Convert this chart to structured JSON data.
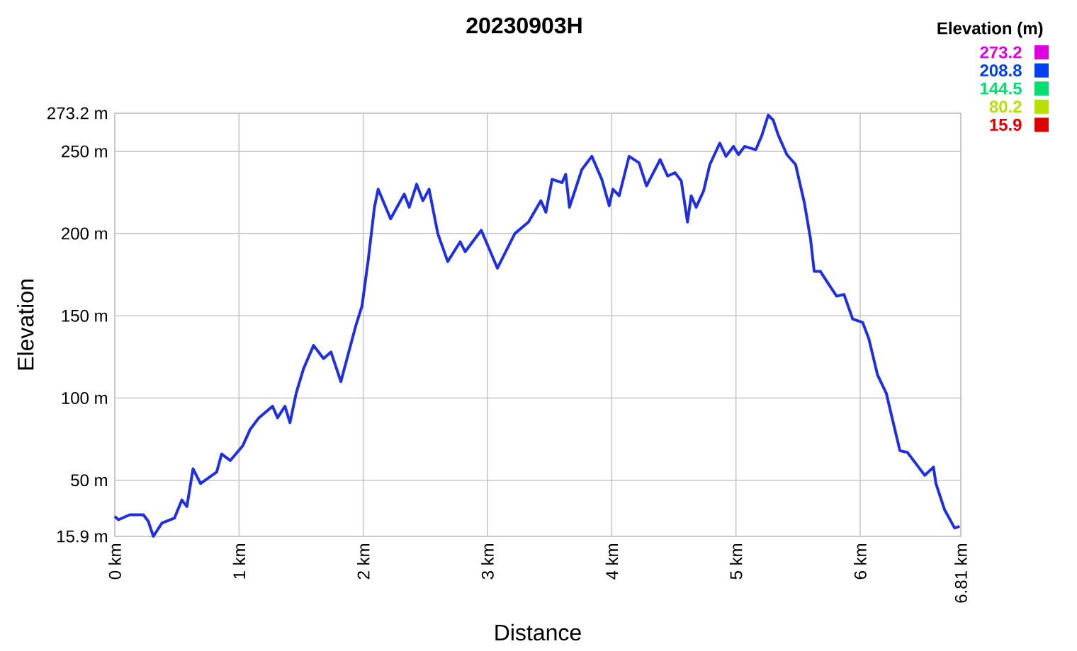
{
  "chart_data": {
    "type": "line",
    "title": "20230903H",
    "xlabel": "Distance",
    "ylabel": "Elevation",
    "x": [
      0,
      0.03,
      0.12,
      0.23,
      0.27,
      0.31,
      0.38,
      0.48,
      0.54,
      0.58,
      0.63,
      0.69,
      0.82,
      0.86,
      0.93,
      1.03,
      1.09,
      1.16,
      1.27,
      1.31,
      1.37,
      1.41,
      1.46,
      1.52,
      1.6,
      1.68,
      1.74,
      1.82,
      1.88,
      1.94,
      1.99,
      2.04,
      2.09,
      2.12,
      2.22,
      2.33,
      2.37,
      2.43,
      2.48,
      2.53,
      2.6,
      2.68,
      2.78,
      2.82,
      2.95,
      3.08,
      3.22,
      3.33,
      3.43,
      3.47,
      3.52,
      3.6,
      3.63,
      3.66,
      3.76,
      3.84,
      3.92,
      3.98,
      4.01,
      4.06,
      4.14,
      4.22,
      4.28,
      4.39,
      4.45,
      4.51,
      4.56,
      4.61,
      4.64,
      4.68,
      4.74,
      4.79,
      4.87,
      4.92,
      4.98,
      5.02,
      5.07,
      5.16,
      5.21,
      5.26,
      5.3,
      5.34,
      5.41,
      5.48,
      5.55,
      5.6,
      5.63,
      5.68,
      5.74,
      5.81,
      5.87,
      5.94,
      6.02,
      6.07,
      6.14,
      6.21,
      6.26,
      6.32,
      6.38,
      6.47,
      6.52,
      6.59,
      6.61,
      6.68,
      6.76,
      6.8
    ],
    "values": [
      28,
      26,
      29,
      29,
      25,
      15.9,
      24,
      27,
      38,
      34,
      57,
      48,
      55,
      66,
      62,
      71,
      81,
      88,
      95,
      88,
      95,
      85,
      103,
      118,
      132,
      124,
      128,
      110,
      127,
      144,
      156,
      184,
      216,
      227,
      209,
      224,
      216,
      230,
      220,
      227,
      200,
      183,
      195,
      189,
      202,
      179,
      200,
      207,
      220,
      213,
      233,
      231,
      236,
      216,
      239,
      247,
      233,
      217,
      227,
      223,
      247,
      243,
      229,
      245,
      235,
      237,
      232,
      207,
      223,
      216,
      226,
      242,
      255,
      247,
      253,
      248,
      253,
      251,
      260,
      272,
      269,
      260,
      248,
      242,
      219,
      197,
      177,
      177,
      170,
      162,
      163,
      148,
      146,
      136,
      114,
      103,
      87,
      68,
      67,
      58,
      53,
      58,
      48,
      32,
      21,
      22
    ],
    "color": "#2030e0",
    "xlim": [
      0,
      6.81
    ],
    "xticks": [
      {
        "value": 0,
        "label": "0 km"
      },
      {
        "value": 1,
        "label": "1 km"
      },
      {
        "value": 2,
        "label": "2 km"
      },
      {
        "value": 3,
        "label": "3 km"
      },
      {
        "value": 4,
        "label": "4 km"
      },
      {
        "value": 5,
        "label": "5 km"
      },
      {
        "value": 6,
        "label": "6 km"
      },
      {
        "value": 6.81,
        "label": "6.81 km"
      }
    ],
    "ylim": [
      15.9,
      273.2
    ],
    "yticks": [
      {
        "value": 15.9,
        "label": "15.9 m"
      },
      {
        "value": 50,
        "label": "50 m"
      },
      {
        "value": 100,
        "label": "100 m"
      },
      {
        "value": 150,
        "label": "150 m"
      },
      {
        "value": 200,
        "label": "200 m"
      },
      {
        "value": 250,
        "label": "250 m"
      },
      {
        "value": 273.2,
        "label": "273.2 m"
      }
    ],
    "grid": true,
    "marker": "none",
    "line_style": "solid",
    "clabel": "Elevation (m)",
    "clim": [
      15.9,
      273.2
    ],
    "cticks": [
      273.2,
      208.8,
      144.5,
      80.2,
      15.9
    ]
  }
}
